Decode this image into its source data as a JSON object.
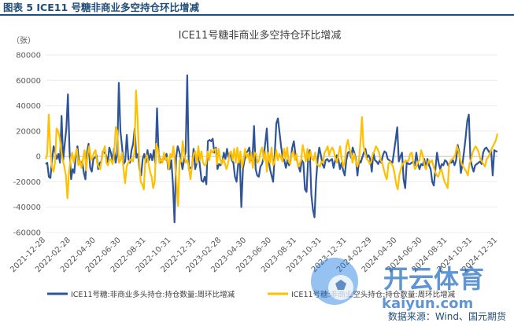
{
  "figure_title": "图表 5  ICE11 号糖非商业多空持仓环比增减",
  "source": "数据来源：Wind、国元期货",
  "watermark": {
    "brand": "开云体育",
    "url": "kaiyun.com"
  },
  "colors": {
    "series1": "#2f5597",
    "series2": "#ffc000",
    "axis_text": "#595959",
    "heading": "#1f4e79"
  },
  "chart_data": {
    "type": "line",
    "title": "ICE11号糖非商业多空持仓环比增减",
    "ylabel": "（张）",
    "ylim": [
      -60000,
      80000
    ],
    "yticks": [
      -60000,
      -40000,
      -20000,
      0,
      20000,
      40000,
      60000,
      80000
    ],
    "x_tick_labels": [
      "2021-12-28",
      "2022-02-28",
      "2022-04-30",
      "2022-06-30",
      "2022-08-31",
      "2022-10-31",
      "2022-12-31",
      "2023-02-28",
      "2023-04-30",
      "2023-06-30",
      "2023-08-31",
      "2023-10-31",
      "2023-12-31",
      "2024-02-29",
      "2024-04-30",
      "2024-06-30",
      "2024-08-31",
      "2024-10-31",
      "2024-12-31"
    ],
    "legend_position": "bottom",
    "series": [
      {
        "name": "ICE11号糖:非商业多头持仓:持仓数量:周环比增减",
        "color": "#2f5597",
        "values": [
          -6000,
          -5000,
          -16000,
          -17000,
          -3000,
          8000,
          3000,
          -2000,
          2000,
          -5000,
          32000,
          -3000,
          10000,
          22000,
          49000,
          5000,
          -18000,
          -10000,
          -13000,
          2000,
          8000,
          -5000,
          -6000,
          -4000,
          -13000,
          -18000,
          3000,
          10000,
          -9000,
          -12000,
          -2000,
          -1000,
          1000,
          -10000,
          -5000,
          -4000,
          4000,
          3000,
          1000,
          -6000,
          7000,
          3000,
          -3000,
          6000,
          -5000,
          2000,
          58000,
          20000,
          8000,
          -6000,
          -4000,
          17000,
          -2000,
          -5000,
          5000,
          10000,
          22000,
          -1000,
          2000,
          -10000,
          -15000,
          -2000,
          2000,
          -5000,
          5000,
          -3000,
          2000,
          -3000,
          5000,
          -6000,
          38000,
          2000,
          -5000,
          -3000,
          -2000,
          -1000,
          2000,
          -10000,
          -10000,
          -3000,
          -22000,
          -52000,
          -1000,
          8000,
          4000,
          -2000,
          -10000,
          -3000,
          4000,
          64000,
          -10000,
          -9000,
          -8000,
          6000,
          -10000,
          -5000,
          3000,
          -8000,
          -19000,
          -20000,
          -16000,
          -22000,
          12000,
          13000,
          12000,
          14000,
          3000,
          7000,
          -10000,
          -6000,
          -7000,
          -5000,
          3000,
          -2000,
          6000,
          -1000,
          3000,
          -3000,
          -5000,
          -16000,
          -20000,
          -6000,
          -2000,
          -40000,
          -10000,
          -3000,
          3000,
          4000,
          7000,
          -3000,
          -1000,
          24000,
          -10000,
          -15000,
          -16000,
          -8000,
          -6000,
          -1000,
          10000,
          22000,
          -1000,
          -10000,
          -15000,
          -20000,
          2000,
          26000,
          30000,
          19000,
          8000,
          -1000,
          -3000,
          -9000,
          -3000,
          -7000,
          -3000,
          7000,
          12000,
          2000,
          -3000,
          -8000,
          -12000,
          -3000,
          -5000,
          -26000,
          -28000,
          -2000,
          5000,
          -30000,
          -42000,
          -48000,
          -19000,
          -2000,
          7000,
          1000,
          -6000,
          -9000,
          -3000,
          -2000,
          -4000,
          -3000,
          -2000,
          -9000,
          -3000,
          1000,
          -2000,
          -10000,
          -5000,
          -11000,
          -15000,
          -3000,
          3000,
          4000,
          -1000,
          7000,
          3000,
          -2000,
          -15000,
          -3000,
          -5000,
          -1000,
          3000,
          6000,
          -1000,
          1000,
          -2000,
          -12000,
          3000,
          -3000,
          -4000,
          -6000,
          -3000,
          -5000,
          1000,
          4000,
          3000,
          -2000,
          -3000,
          -4000,
          -5000,
          4000,
          13000,
          23000,
          -4000,
          0,
          3000,
          -18000,
          -25000,
          -4000,
          -6000,
          -6000,
          -5000,
          -4000,
          -7000,
          3000,
          -6000,
          -10000,
          -6000,
          -7000,
          -2000,
          -10000,
          -2000,
          -7000,
          -10000,
          -20000,
          -23000,
          -10000,
          3000,
          -5000,
          -10000,
          -6000,
          -7000,
          -3000,
          -4000,
          -7000,
          -5000,
          -5000,
          -3000,
          -7000,
          -3000,
          9000,
          3000,
          -13000,
          -6000,
          4000,
          15000,
          28000,
          33000,
          -2000,
          -8000,
          -12000,
          -7000,
          -6000,
          -5000,
          -4000,
          -6000,
          3000,
          6000,
          7000,
          5000,
          3000,
          5000,
          -15000,
          5000,
          4000,
          4000
        ]
      },
      {
        "name": "ICE11号糖:非商业空头持仓:持仓数量:周环比增减",
        "color": "#ffc000",
        "values": [
          -2000,
          2000,
          33000,
          6000,
          -8000,
          -12000,
          -5000,
          22000,
          20000,
          15000,
          4000,
          -3000,
          -8000,
          -15000,
          -33000,
          -12000,
          -2000,
          3000,
          -5000,
          1000,
          6000,
          -7000,
          -3000,
          -9000,
          -2000,
          5000,
          -11000,
          2000,
          8000,
          -3000,
          -1000,
          3000,
          5000,
          -5000,
          -8000,
          -10000,
          -2000,
          4000,
          8000,
          -5000,
          -7000,
          -2000,
          -3000,
          -6000,
          3000,
          23000,
          20000,
          -5000,
          -3000,
          3000,
          -10000,
          -21000,
          -8000,
          -5000,
          -3000,
          -2000,
          -4000,
          3000,
          52000,
          30000,
          -2000,
          -20000,
          -22000,
          -26000,
          -2000,
          1000,
          -5000,
          -12000,
          -16000,
          -25000,
          -20000,
          10000,
          6000,
          -5000,
          -2000,
          -5000,
          3000,
          -3000,
          -1000,
          -10000,
          2000,
          -1000,
          8000,
          -5000,
          -20000,
          -39000,
          -3000,
          -4000,
          12000,
          2000,
          -5000,
          -3000,
          -10000,
          -18000,
          -6000,
          2000,
          4000,
          -5000,
          8000,
          -3000,
          4000,
          -5000,
          -7000,
          -6000,
          4000,
          -3000,
          5000,
          3000,
          5000,
          6000,
          -6000,
          6000,
          -2000,
          -6000,
          -2000,
          -5000,
          -10000,
          -6000,
          2000,
          4000,
          -3000,
          6000,
          -5000,
          7000,
          -5000,
          4000,
          -9000,
          -3000,
          6000,
          -1000,
          2000,
          -5000,
          3000,
          -9000,
          3000,
          2000,
          -5000,
          -3000,
          4000,
          7000,
          -3000,
          4000,
          -12000,
          3000,
          -5000,
          7000,
          -7000,
          -4000,
          5000,
          -3000,
          2000,
          -1000,
          -4000,
          6000,
          -2000,
          7000,
          -4000,
          -6000,
          2000,
          4000,
          -3000,
          2000,
          -8000,
          -6000,
          -3000,
          9000,
          3000,
          -4000,
          6000,
          -3000,
          4000,
          -2000,
          -3000,
          3000,
          -6000,
          -7000,
          -8000,
          -4000,
          -5000,
          3000,
          5000,
          8000,
          1000,
          5000,
          7000,
          4000,
          -2000,
          -5000,
          2000,
          8000,
          -2000,
          -8000,
          -4000,
          8000,
          13000,
          6000,
          2000,
          -5000,
          2000,
          -3000,
          -8000,
          -4000,
          10000,
          31000,
          8000,
          3000,
          -2000,
          -3000,
          -6000,
          -4000,
          2000,
          4000,
          8000,
          6000,
          3000,
          -3000,
          -5000,
          -10000,
          -15000,
          -18000,
          -6000,
          -4000,
          -6000,
          -8000,
          -14000,
          -22000,
          -26000,
          -15000,
          -10000,
          -6000,
          -5000,
          -3000,
          -4000,
          -3000,
          2000,
          3000,
          -5000,
          -10000,
          -8000,
          -4000,
          -3000,
          5000,
          1000,
          -6000,
          -10000,
          -6000,
          -3000,
          -5000,
          -3000,
          -8000,
          -12000,
          -15000,
          -16000,
          -12000,
          -10000,
          -15000,
          -20000,
          -22000,
          -25000,
          -6000,
          -3000,
          -2000,
          -1000,
          2000,
          8000,
          4000,
          -2000,
          -6000,
          -8000,
          -10000,
          -12000,
          -15000,
          -6000,
          -3000,
          3000,
          6000,
          8000,
          6000,
          3000,
          -2000,
          -4000,
          -6000,
          -8000,
          -2000,
          -1000,
          2000,
          5000,
          8000,
          10000,
          13000,
          18000
        ]
      }
    ]
  }
}
